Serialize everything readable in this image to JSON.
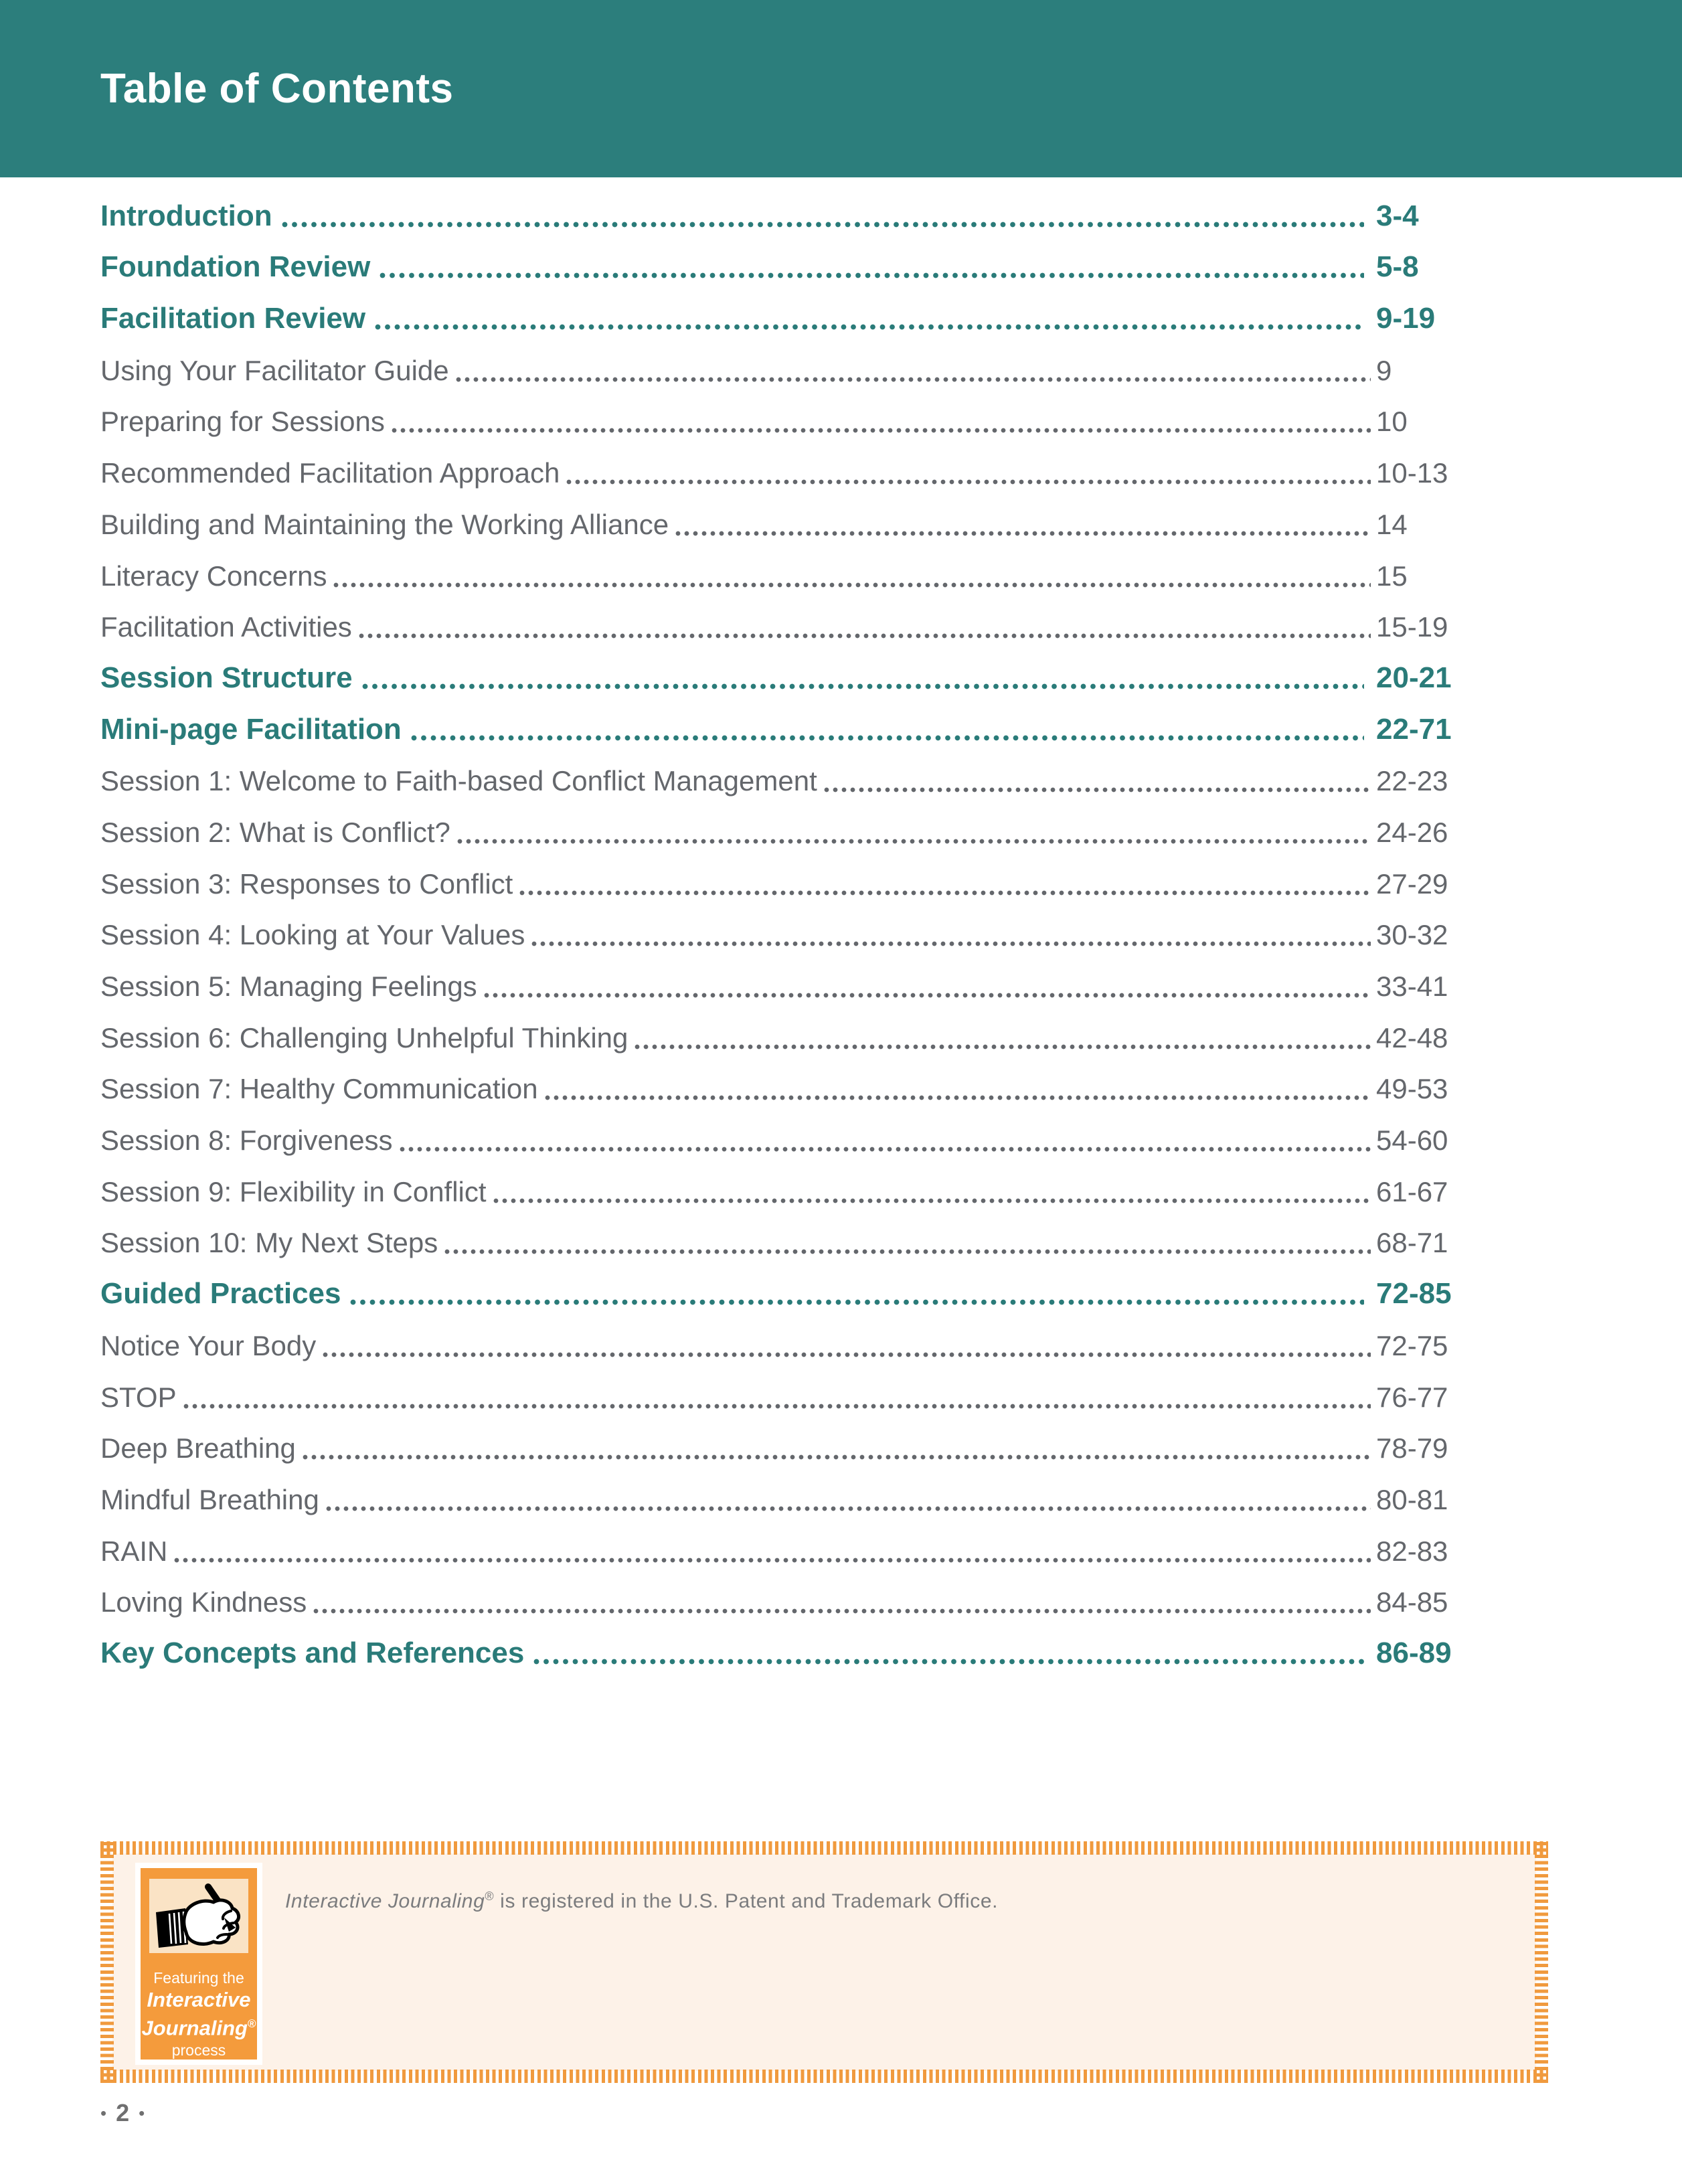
{
  "header": {
    "title": "Table of Contents"
  },
  "colors": {
    "teal_header": "#2c7e7c",
    "teal_entry": "#2a7b79",
    "gray_text": "#64676c",
    "orange": "#f09a3e",
    "badge_orange": "#f49b3c",
    "cream": "#fdf2e8",
    "peach": "#fae3c5",
    "trademark_gray": "#7b7c7e",
    "footer_gray": "#6f6f70"
  },
  "toc": {
    "entries": [
      {
        "label": "Introduction",
        "pages": "3-4",
        "level": "section"
      },
      {
        "label": "Foundation Review",
        "pages": "5-8",
        "level": "section"
      },
      {
        "label": "Facilitation Review",
        "pages": "9-19",
        "level": "section"
      },
      {
        "label": "Using Your Facilitator Guide",
        "pages": "9",
        "level": "sub"
      },
      {
        "label": "Preparing for Sessions",
        "pages": "10",
        "level": "sub"
      },
      {
        "label": "Recommended Facilitation Approach",
        "pages": "10-13",
        "level": "sub"
      },
      {
        "label": "Building and Maintaining the Working Alliance",
        "pages": "14",
        "level": "sub"
      },
      {
        "label": "Literacy Concerns",
        "pages": "15",
        "level": "sub"
      },
      {
        "label": "Facilitation Activities",
        "pages": "15-19",
        "level": "sub"
      },
      {
        "label": "Session Structure",
        "pages": "20-21",
        "level": "section"
      },
      {
        "label": "Mini-page Facilitation",
        "pages": "22-71",
        "level": "section"
      },
      {
        "label": "Session 1: Welcome to Faith-based Conflict Management",
        "pages": "22-23",
        "level": "sub"
      },
      {
        "label": "Session 2: What is Conflict?",
        "pages": "24-26",
        "level": "sub"
      },
      {
        "label": "Session 3: Responses to Conflict",
        "pages": "27-29",
        "level": "sub"
      },
      {
        "label": "Session 4: Looking at Your Values",
        "pages": "30-32",
        "level": "sub"
      },
      {
        "label": "Session 5: Managing Feelings",
        "pages": "33-41",
        "level": "sub"
      },
      {
        "label": "Session 6: Challenging Unhelpful Thinking",
        "pages": "42-48",
        "level": "sub"
      },
      {
        "label": "Session 7: Healthy Communication",
        "pages": "49-53",
        "level": "sub"
      },
      {
        "label": "Session 8: Forgiveness",
        "pages": "54-60",
        "level": "sub"
      },
      {
        "label": "Session 9: Flexibility in Conflict",
        "pages": "61-67",
        "level": "sub"
      },
      {
        "label": "Session 10: My Next Steps",
        "pages": "68-71",
        "level": "sub"
      },
      {
        "label": "Guided Practices",
        "pages": "72-85",
        "level": "section"
      },
      {
        "label": "Notice Your Body",
        "pages": "72-75",
        "level": "sub"
      },
      {
        "label": "STOP",
        "pages": "76-77",
        "level": "sub"
      },
      {
        "label": "Deep Breathing",
        "pages": "78-79",
        "level": "sub"
      },
      {
        "label": "Mindful Breathing",
        "pages": "80-81",
        "level": "sub"
      },
      {
        "label": "RAIN",
        "pages": "82-83",
        "level": "sub"
      },
      {
        "label": "Loving Kindness",
        "pages": "84-85",
        "level": "sub"
      },
      {
        "label": "Key Concepts and References",
        "pages": "86-89",
        "level": "section"
      }
    ]
  },
  "footnote_box": {
    "badge": {
      "icon": "writing-hand-icon",
      "line1": "Featuring the",
      "line2": "Interactive",
      "line3": "Journaling",
      "registered_mark": "®",
      "line4": "process"
    },
    "text_italic": "Interactive Journaling",
    "text_registered": "®",
    "text_rest": " is registered in the U.S. Patent and Trademark Office."
  },
  "footer": {
    "bullet": "•",
    "page_number": "2"
  }
}
